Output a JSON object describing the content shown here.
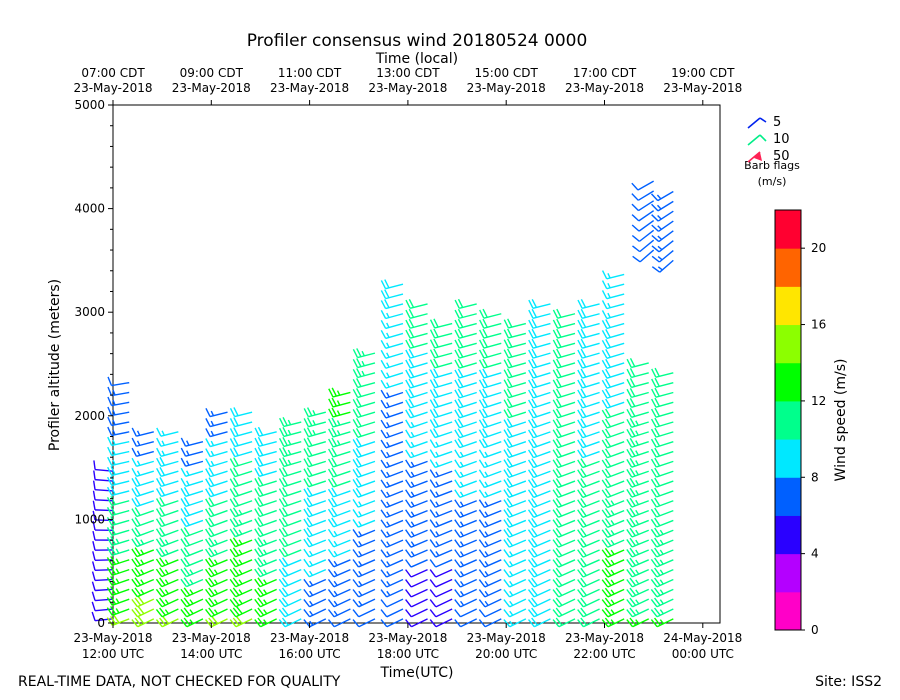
{
  "chart_data": {
    "type": "wind-barb-profile",
    "title": "Profiler consensus wind 20180524 0000",
    "top_axis_label": "Time (local)",
    "xlabel": "Time(UTC)",
    "ylabel": "Profiler altitude (meters)",
    "ylim": [
      0,
      5000
    ],
    "y_ticks": [
      "0",
      "1000",
      "2000",
      "3000",
      "4000",
      "5000"
    ],
    "bottom_ticks": [
      {
        "hour": 12,
        "line1": "23-May-2018",
        "line2": "12:00 UTC"
      },
      {
        "hour": 14,
        "line1": "23-May-2018",
        "line2": "14:00 UTC"
      },
      {
        "hour": 16,
        "line1": "23-May-2018",
        "line2": "16:00 UTC"
      },
      {
        "hour": 18,
        "line1": "23-May-2018",
        "line2": "18:00 UTC"
      },
      {
        "hour": 20,
        "line1": "23-May-2018",
        "line2": "20:00 UTC"
      },
      {
        "hour": 22,
        "line1": "23-May-2018",
        "line2": "22:00 UTC"
      },
      {
        "hour": 24,
        "line1": "24-May-2018",
        "line2": "00:00 UTC"
      }
    ],
    "top_ticks": [
      {
        "hour": 12,
        "line1": "07:00 CDT",
        "line2": "23-May-2018"
      },
      {
        "hour": 14,
        "line1": "09:00 CDT",
        "line2": "23-May-2018"
      },
      {
        "hour": 16,
        "line1": "11:00 CDT",
        "line2": "23-May-2018"
      },
      {
        "hour": 18,
        "line1": "13:00 CDT",
        "line2": "23-May-2018"
      },
      {
        "hour": 20,
        "line1": "15:00 CDT",
        "line2": "23-May-2018"
      },
      {
        "hour": 22,
        "line1": "17:00 CDT",
        "line2": "23-May-2018"
      },
      {
        "hour": 24,
        "line1": "19:00 CDT",
        "line2": "23-May-2018"
      }
    ],
    "xlim_hours": [
      12,
      24.35
    ],
    "profiles": [
      {
        "hour": 12.0,
        "top": 1550,
        "dir": 270,
        "low_speed": 5,
        "high_speed": 5
      },
      {
        "hour": 12.33,
        "top": 2350,
        "dir": 255,
        "low_speed": 14,
        "high_speed": 6
      },
      {
        "hour": 12.83,
        "top": 1850,
        "dir": 250,
        "low_speed": 15,
        "high_speed": 7
      },
      {
        "hour": 13.33,
        "top": 1850,
        "dir": 250,
        "low_speed": 14,
        "high_speed": 8
      },
      {
        "hour": 13.83,
        "top": 1800,
        "dir": 250,
        "low_speed": 13,
        "high_speed": 7
      },
      {
        "hour": 14.33,
        "top": 2050,
        "dir": 250,
        "low_speed": 14,
        "high_speed": 7
      },
      {
        "hour": 14.83,
        "top": 2050,
        "dir": 250,
        "low_speed": 14,
        "high_speed": 9
      },
      {
        "hour": 15.33,
        "top": 1850,
        "dir": 250,
        "low_speed": 13,
        "high_speed": 9
      },
      {
        "hour": 15.83,
        "top": 1950,
        "dir": 250,
        "low_speed": 9,
        "high_speed": 12
      },
      {
        "hour": 16.33,
        "top": 2100,
        "dir": 250,
        "low_speed": 7,
        "high_speed": 12
      },
      {
        "hour": 16.83,
        "top": 2300,
        "dir": 250,
        "low_speed": 6,
        "high_speed": 13
      },
      {
        "hour": 17.33,
        "top": 2650,
        "dir": 250,
        "low_speed": 6,
        "high_speed": 12
      },
      {
        "hour": 17.9,
        "top": 3350,
        "dir": 250,
        "low_speed": 6,
        "high_speed": 9
      },
      {
        "hour": 18.4,
        "top": 3150,
        "dir": 250,
        "low_speed": 5,
        "high_speed": 11
      },
      {
        "hour": 18.9,
        "top": 2900,
        "dir": 250,
        "low_speed": 5,
        "high_speed": 11
      },
      {
        "hour": 19.4,
        "top": 3100,
        "dir": 250,
        "low_speed": 6,
        "high_speed": 11
      },
      {
        "hour": 19.9,
        "top": 3050,
        "dir": 250,
        "low_speed": 6,
        "high_speed": 11
      },
      {
        "hour": 20.4,
        "top": 2900,
        "dir": 250,
        "low_speed": 8,
        "high_speed": 11
      },
      {
        "hour": 20.9,
        "top": 3150,
        "dir": 250,
        "low_speed": 9,
        "high_speed": 9
      },
      {
        "hour": 21.4,
        "top": 3050,
        "dir": 250,
        "low_speed": 10,
        "high_speed": 10
      },
      {
        "hour": 21.9,
        "top": 3150,
        "dir": 250,
        "low_speed": 11,
        "high_speed": 9
      },
      {
        "hour": 22.4,
        "top": 3400,
        "dir": 250,
        "low_speed": 13,
        "high_speed": 8
      },
      {
        "hour": 22.9,
        "top": 2600,
        "dir": 250,
        "low_speed": 12,
        "high_speed": 11
      },
      {
        "hour": 23.4,
        "top": 2450,
        "dir": 250,
        "low_speed": 12,
        "high_speed": 10
      },
      {
        "hour": 23.0,
        "top": 4300,
        "dir": 235,
        "low_speed": 6,
        "high_speed": 6,
        "start": 3600
      },
      {
        "hour": 23.4,
        "top": 4250,
        "dir": 235,
        "low_speed": 7,
        "high_speed": 7,
        "start": 3500
      }
    ],
    "barb_legend": {
      "items": [
        {
          "label": "5",
          "color": "#0022ee"
        },
        {
          "label": "10",
          "color": "#00ee88"
        },
        {
          "label": "50",
          "color": "#ff2255"
        }
      ],
      "caption_line1": "Barb flags",
      "caption_line2": "(m/s)"
    },
    "colorbar": {
      "label": "Wind speed (m/s)",
      "range": [
        0,
        22
      ],
      "ticks": [
        "0",
        "4",
        "8",
        "12",
        "16",
        "20"
      ],
      "colors": [
        "#ff00c8",
        "#b400ff",
        "#2a00ff",
        "#0060ff",
        "#00e8ff",
        "#00ff8c",
        "#00ff00",
        "#8cff00",
        "#ffe600",
        "#ff6400",
        "#ff0030"
      ]
    }
  },
  "footer": {
    "left": "REAL-TIME DATA, NOT CHECKED FOR QUALITY",
    "right": "Site: ISS2"
  }
}
